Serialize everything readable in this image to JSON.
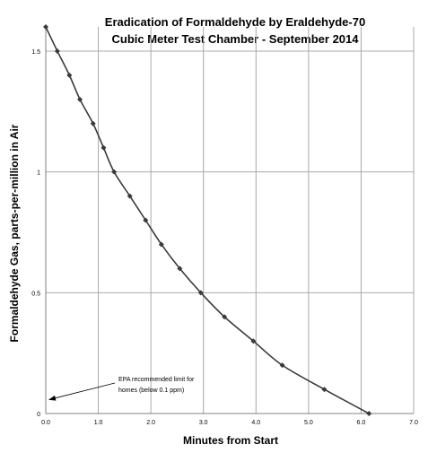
{
  "chart_data": {
    "type": "line",
    "title": "Eradication of Formaldehyde by Eraldehyde-70",
    "subtitle": "Cubic Meter Test Chamber - September 2014",
    "xlabel": "Minutes from Start",
    "ylabel": "Formaldehyde Gas, parts-per-million in Air",
    "xlim": [
      0,
      7
    ],
    "ylim": [
      0,
      1.6
    ],
    "x_ticks": [
      "0.0",
      "1.0",
      "2.0",
      "3.0",
      "4.0",
      "5.0",
      "6.0",
      "7.0"
    ],
    "y_ticks": [
      "0",
      "0.5",
      "1",
      "1.5"
    ],
    "grid": true,
    "series": [
      {
        "x": [
          0.0,
          0.22,
          0.45,
          0.65,
          0.9,
          1.1,
          1.3,
          1.6,
          1.9,
          2.2,
          2.55,
          2.95,
          3.4,
          3.95,
          4.5,
          5.3,
          6.15
        ],
        "y": [
          1.6,
          1.5,
          1.4,
          1.3,
          1.2,
          1.1,
          1.0,
          0.9,
          0.8,
          0.7,
          0.6,
          0.5,
          0.4,
          0.3,
          0.2,
          0.1,
          0.0
        ],
        "color": "#3a3a3a"
      }
    ],
    "annotations": [
      {
        "lines": [
          "EPA recommended limit for",
          "homes (below  0.1 ppm)"
        ],
        "target": {
          "x": 0.0,
          "y": 0.08
        }
      }
    ]
  },
  "colors": {
    "line": "#3a3a3a",
    "grid": "#a8a8a8",
    "axis": "#808080"
  }
}
